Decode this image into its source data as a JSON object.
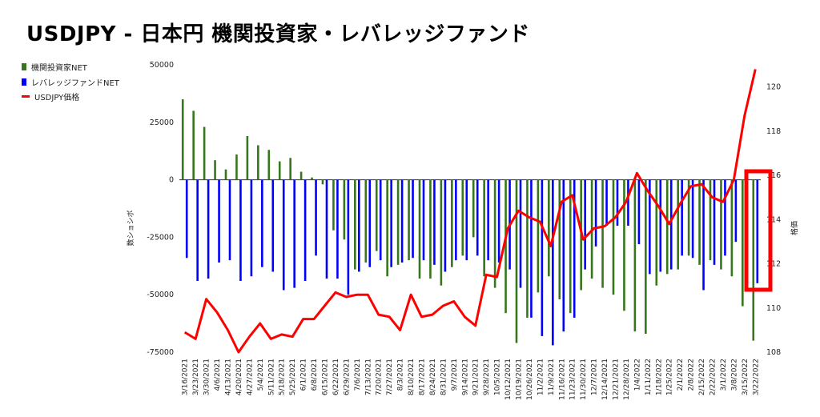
{
  "title": "USDJPY - 日本円 機関投資家・レバレッジファンド",
  "colors": {
    "institutional": "#38761d",
    "leveraged": "#0000ff",
    "price": "#ff0000",
    "highlight": "#ff0000"
  },
  "chart_data": {
    "type": "bar+line",
    "legend_position": "left",
    "grid": false,
    "title": "USDJPY - 日本円 機関投資家・レバレッジファンド",
    "ylabel_left": "数ショシボ",
    "ylabel_right": "格価",
    "ylim_left": [
      -75000,
      50000
    ],
    "ylim_right": [
      108,
      121
    ],
    "yticks_left": [
      "50000",
      "25000",
      "0",
      "-25000",
      "-50000",
      "-75000"
    ],
    "yticks_right": [
      "120",
      "118",
      "116",
      "114",
      "112",
      "110",
      "108"
    ],
    "x": [
      "3/16/2021",
      "3/23/2021",
      "3/30/2021",
      "4/6/2021",
      "4/13/2021",
      "4/20/2021",
      "4/27/2021",
      "5/4/2021",
      "5/11/2021",
      "5/18/2021",
      "5/25/2021",
      "6/1/2021",
      "6/8/2021",
      "6/15/2021",
      "6/22/2021",
      "6/29/2021",
      "7/6/2021",
      "7/13/2021",
      "7/20/2021",
      "7/27/2021",
      "8/3/2021",
      "8/10/2021",
      "8/17/2021",
      "8/24/2021",
      "8/31/2021",
      "9/7/2021",
      "9/14/2021",
      "9/21/2021",
      "9/28/2021",
      "10/5/2021",
      "10/12/2021",
      "10/19/2021",
      "10/26/2021",
      "11/2/2021",
      "11/9/2021",
      "11/16/2021",
      "11/23/2021",
      "11/30/2021",
      "12/7/2021",
      "12/14/2021",
      "12/21/2021",
      "12/28/2021",
      "1/4/2022",
      "1/11/2022",
      "1/18/2022",
      "1/25/2022",
      "2/1/2022",
      "2/8/2022",
      "2/15/2022",
      "2/22/2022",
      "3/1/2022",
      "3/8/2022",
      "3/15/2022",
      "3/22/2022"
    ],
    "series": [
      {
        "name": "機関投資家NET",
        "kind": "bar",
        "values": [
          35000,
          30000,
          23000,
          8500,
          4500,
          11000,
          19000,
          15000,
          13000,
          8000,
          9500,
          3500,
          1000,
          -2000,
          -22000,
          -26000,
          -39000,
          -36000,
          -31000,
          -42000,
          -37000,
          -35000,
          -43000,
          -43000,
          -46000,
          -38000,
          -33000,
          -25000,
          -42000,
          -47000,
          -58000,
          -71000,
          -60000,
          -49000,
          -42000,
          -52000,
          -58000,
          -48000,
          -43000,
          -47000,
          -50000,
          -57000,
          -66000,
          -67000,
          -46000,
          -41000,
          -39000,
          -33000,
          -37000,
          -35000,
          -39000,
          -42000,
          -55000,
          -70000
        ]
      },
      {
        "name": "レバレッジファンドNET",
        "kind": "bar",
        "values": [
          -34000,
          -44000,
          -43000,
          -36000,
          -35000,
          -44000,
          -42000,
          -38000,
          -40000,
          -48000,
          -47000,
          -44000,
          -33000,
          -43000,
          -43000,
          -50000,
          -40000,
          -38000,
          -35000,
          -38000,
          -36000,
          -34000,
          -35000,
          -37000,
          -40000,
          -35000,
          -35000,
          -33000,
          -35000,
          -36000,
          -39000,
          -47000,
          -60000,
          -68000,
          -72000,
          -66000,
          -60000,
          -39000,
          -29000,
          -20000,
          -20000,
          -20000,
          -28000,
          -41000,
          -40000,
          -39000,
          -33000,
          -34000,
          -48000,
          -37000,
          -33000,
          -27000,
          -13000,
          -45000
        ]
      },
      {
        "name": "USDJPY価格",
        "kind": "line",
        "axis": "right",
        "values": [
          108.9,
          108.6,
          110.4,
          109.8,
          109.0,
          108.0,
          108.7,
          109.3,
          108.6,
          108.8,
          108.7,
          109.5,
          109.5,
          110.1,
          110.7,
          110.5,
          110.6,
          110.6,
          109.7,
          109.6,
          109.0,
          110.6,
          109.6,
          109.7,
          110.1,
          110.3,
          109.6,
          109.2,
          111.5,
          111.4,
          113.6,
          114.4,
          114.1,
          113.9,
          112.8,
          114.8,
          115.1,
          113.1,
          113.6,
          113.7,
          114.1,
          114.8,
          116.1,
          115.3,
          114.6,
          113.8,
          114.7,
          115.5,
          115.6,
          115.0,
          114.8,
          115.8,
          118.7,
          120.8
        ]
      }
    ]
  },
  "legend": [
    {
      "label": "機関投資家NET",
      "kind": "bar",
      "color": "#38761d"
    },
    {
      "label": "レバレッジファンドNET",
      "kind": "bar",
      "color": "#0000ff"
    },
    {
      "label": "USDJPY価格",
      "kind": "line",
      "color": "#ff0000"
    }
  ]
}
